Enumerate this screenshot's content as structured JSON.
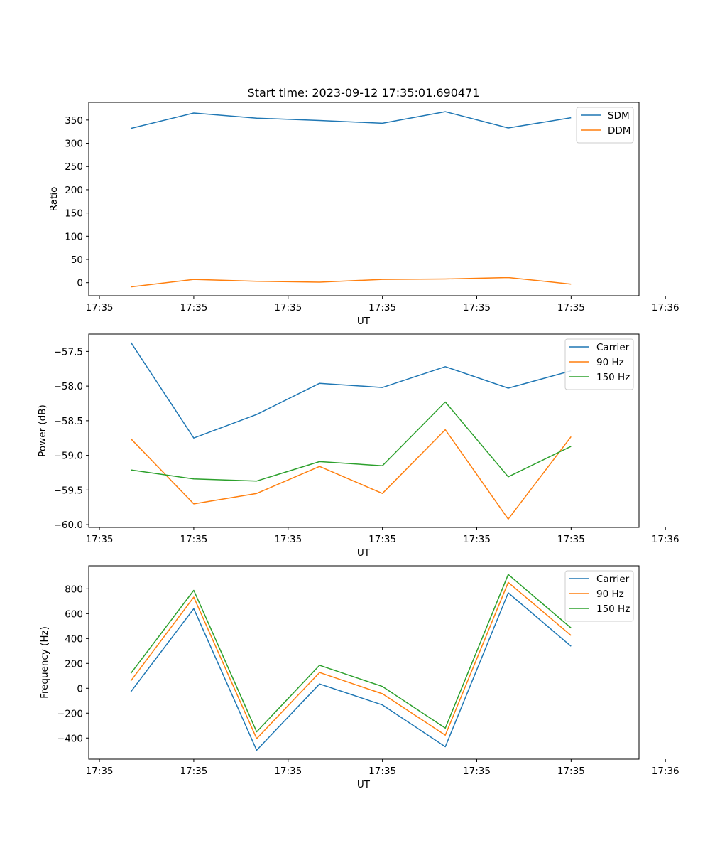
{
  "chart_data": [
    {
      "type": "line",
      "title": "Start time: 2023-09-12 17:35:01.690471",
      "xlabel": "UT",
      "ylabel": "Ratio",
      "x": [
        1,
        2,
        3,
        4,
        5,
        6,
        7,
        8
      ],
      "xlim": [
        0.33,
        9.08
      ],
      "x_ticks": [
        0.5,
        2.0,
        3.5,
        5.0,
        6.5,
        8.0,
        9.5
      ],
      "x_tick_labels": [
        "17:35",
        "17:35",
        "17:35",
        "17:35",
        "17:35",
        "17:35",
        "17:36"
      ],
      "ylim": [
        -28,
        388
      ],
      "y_ticks": [
        0,
        50,
        100,
        150,
        200,
        250,
        300,
        350
      ],
      "y_tick_labels": [
        "0",
        "50",
        "100",
        "150",
        "200",
        "250",
        "300",
        "350"
      ],
      "legend_position": "top-right",
      "series": [
        {
          "name": "SDM",
          "color": "#1f77b4",
          "values": [
            332,
            365,
            354,
            349,
            343,
            368,
            333,
            355
          ]
        },
        {
          "name": "DDM",
          "color": "#ff7f0e",
          "values": [
            -9,
            7,
            3,
            1,
            7,
            8,
            11,
            -3
          ]
        }
      ]
    },
    {
      "type": "line",
      "title": "",
      "xlabel": "UT",
      "ylabel": "Power (dB)",
      "x": [
        1,
        2,
        3,
        4,
        5,
        6,
        7,
        8
      ],
      "xlim": [
        0.33,
        9.08
      ],
      "x_ticks": [
        0.5,
        2.0,
        3.5,
        5.0,
        6.5,
        8.0,
        9.5
      ],
      "x_tick_labels": [
        "17:35",
        "17:35",
        "17:35",
        "17:35",
        "17:35",
        "17:35",
        "17:36"
      ],
      "ylim": [
        -60.04,
        -57.25
      ],
      "y_ticks": [
        -60.0,
        -59.5,
        -59.0,
        -58.5,
        -58.0,
        -57.5
      ],
      "y_tick_labels": [
        "−60.0",
        "−59.5",
        "−59.0",
        "−58.5",
        "−58.0",
        "−57.5"
      ],
      "legend_position": "top-right",
      "series": [
        {
          "name": "Carrier",
          "color": "#1f77b4",
          "values": [
            -57.37,
            -58.75,
            -58.41,
            -57.96,
            -58.02,
            -57.72,
            -58.03,
            -57.78
          ]
        },
        {
          "name": "90 Hz",
          "color": "#ff7f0e",
          "values": [
            -58.76,
            -59.7,
            -59.55,
            -59.16,
            -59.55,
            -58.63,
            -59.92,
            -58.73
          ]
        },
        {
          "name": "150 Hz",
          "color": "#2ca02c",
          "values": [
            -59.21,
            -59.34,
            -59.37,
            -59.09,
            -59.15,
            -58.23,
            -59.31,
            -58.87
          ]
        }
      ]
    },
    {
      "type": "line",
      "title": "",
      "xlabel": "UT",
      "ylabel": "Frequency (Hz)",
      "x": [
        1,
        2,
        3,
        4,
        5,
        6,
        7,
        8
      ],
      "xlim": [
        0.33,
        9.08
      ],
      "x_ticks": [
        0.5,
        2.0,
        3.5,
        5.0,
        6.5,
        8.0,
        9.5
      ],
      "x_tick_labels": [
        "17:35",
        "17:35",
        "17:35",
        "17:35",
        "17:35",
        "17:35",
        "17:36"
      ],
      "ylim": [
        -570,
        985
      ],
      "y_ticks": [
        -400,
        -200,
        0,
        200,
        400,
        600,
        800
      ],
      "y_tick_labels": [
        "−400",
        "−200",
        "0",
        "200",
        "400",
        "600",
        "800"
      ],
      "legend_position": "top-right",
      "series": [
        {
          "name": "Carrier",
          "color": "#1f77b4",
          "values": [
            -28,
            640,
            -498,
            35,
            -134,
            -470,
            768,
            338
          ]
        },
        {
          "name": "90 Hz",
          "color": "#ff7f0e",
          "values": [
            60,
            733,
            -405,
            127,
            -44,
            -377,
            852,
            425
          ]
        },
        {
          "name": "150 Hz",
          "color": "#2ca02c",
          "values": [
            120,
            788,
            -350,
            185,
            15,
            -320,
            915,
            485
          ]
        }
      ]
    }
  ]
}
